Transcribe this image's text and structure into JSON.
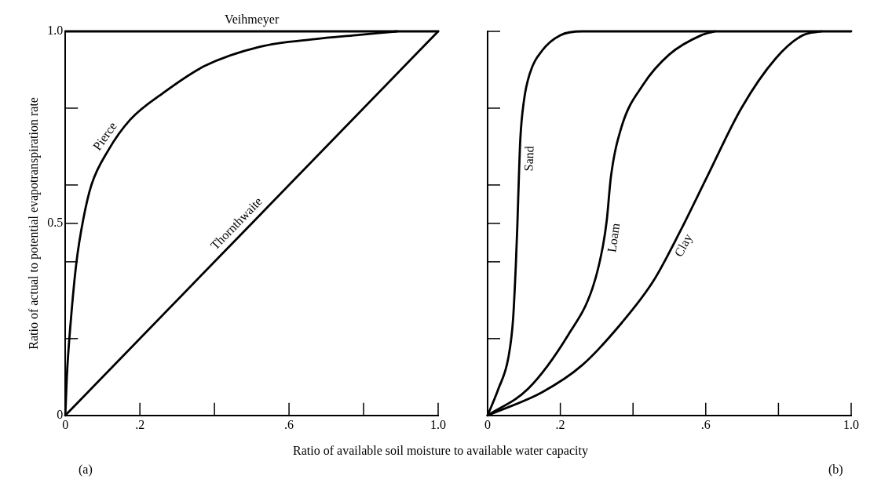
{
  "chart_data": [
    {
      "type": "line",
      "xlabel": "Ratio of available soil moisture to available water capacity",
      "ylabel": "Ratio of actual to potential evapotranspiration rate",
      "annotations": [
        "(a)"
      ],
      "xlim": [
        0,
        1
      ],
      "ylim": [
        0,
        1
      ],
      "xticks": [
        0,
        {
          "value": 0.2,
          "label": ".2"
        },
        {
          "value": 0.4,
          "label": null
        },
        {
          "value": 0.6,
          "label": ".6"
        },
        {
          "value": 0.8,
          "label": null
        },
        {
          "value": 1,
          "label": "1.0"
        }
      ],
      "yticks": [
        0,
        {
          "value": 0.2,
          "label": null
        },
        {
          "value": 0.4,
          "label": null
        },
        {
          "value": 0.5,
          "label": "0.5"
        },
        {
          "value": 0.6,
          "label": null
        },
        {
          "value": 0.8,
          "label": null
        },
        {
          "value": 1,
          "label": "1.0"
        }
      ],
      "grid": false,
      "legend": false,
      "series": [
        {
          "name": "Veihmeyer",
          "color": "#000000",
          "x": [
            0,
            1
          ],
          "values": [
            1,
            1
          ]
        },
        {
          "name": "Pierce",
          "color": "#000000",
          "x": [
            0,
            0.004,
            0.015,
            0.03,
            0.048,
            0.07,
            0.115,
            0.174,
            0.263,
            0.374,
            0.522,
            0.67,
            0.78,
            0.89
          ],
          "values": [
            0,
            0.1,
            0.25,
            0.4,
            0.51,
            0.6,
            0.69,
            0.77,
            0.84,
            0.91,
            0.96,
            0.98,
            0.99,
            1
          ]
        },
        {
          "name": "Thornthwaite",
          "color": "#000000",
          "x": [
            0,
            1
          ],
          "values": [
            0,
            1
          ]
        }
      ]
    },
    {
      "type": "line",
      "annotations": [
        "(b)"
      ],
      "xlim": [
        0,
        1
      ],
      "ylim": [
        0,
        1
      ],
      "xticks": [
        0,
        {
          "value": 0.2,
          "label": ".2"
        },
        {
          "value": 0.4,
          "label": null
        },
        {
          "value": 0.6,
          "label": ".6"
        },
        {
          "value": 0.8,
          "label": null
        },
        {
          "value": 1,
          "label": "1.0"
        }
      ],
      "yticks": [
        {
          "value": 0,
          "label": null
        },
        {
          "value": 0.2,
          "label": null
        },
        {
          "value": 0.4,
          "label": null
        },
        {
          "value": 0.5,
          "label": null
        },
        {
          "value": 0.6,
          "label": null
        },
        {
          "value": 0.8,
          "label": null
        },
        {
          "value": 1,
          "label": null
        }
      ],
      "tick_labels": "x",
      "grid": false,
      "legend": false,
      "series": [
        {
          "name": "Sand",
          "color": "#000000",
          "x": [
            0,
            0.03,
            0.057,
            0.07,
            0.078,
            0.082,
            0.086,
            0.09,
            0.1,
            0.116,
            0.15,
            0.2,
            0.26,
            1
          ],
          "values": [
            0,
            0.07,
            0.15,
            0.25,
            0.4,
            0.5,
            0.62,
            0.72,
            0.82,
            0.89,
            0.95,
            0.99,
            1,
            1
          ]
        },
        {
          "name": "Loam",
          "color": "#000000",
          "x": [
            0,
            0.112,
            0.222,
            0.288,
            0.317,
            0.328,
            0.339,
            0.368,
            0.427,
            0.5,
            0.588,
            0.625
          ],
          "values": [
            0,
            0.07,
            0.21,
            0.33,
            0.44,
            0.51,
            0.62,
            0.75,
            0.86,
            0.94,
            0.99,
            1
          ]
        },
        {
          "name": "Clay",
          "color": "#000000",
          "x": [
            0,
            0.149,
            0.259,
            0.368,
            0.456,
            0.53,
            0.603,
            0.698,
            0.793,
            0.867,
            0.918
          ],
          "values": [
            0,
            0.06,
            0.13,
            0.24,
            0.35,
            0.48,
            0.62,
            0.8,
            0.93,
            0.99,
            1
          ]
        }
      ]
    }
  ]
}
